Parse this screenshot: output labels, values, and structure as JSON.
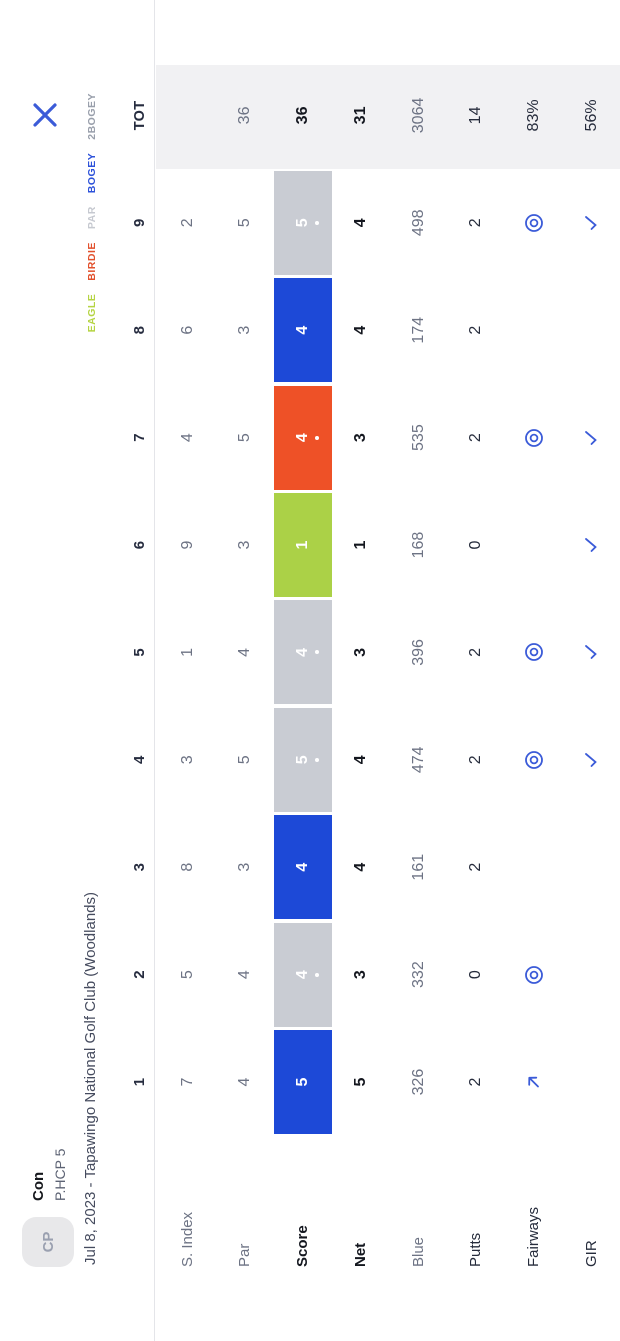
{
  "player": {
    "avatar_initials": "CP",
    "name": "Con",
    "handicap_label": "P.HCP 5"
  },
  "round_info": "Jul 8, 2023 - Tapawingo National Golf Club (Woodlands)",
  "close_label": "close",
  "legend": [
    {
      "label": "EAGLE",
      "color": "#b5d443"
    },
    {
      "label": "BIRDIE",
      "color": "#e2512d"
    },
    {
      "label": "PAR",
      "color": "#c6c9d0"
    },
    {
      "label": "BOGEY",
      "color": "#2d52da"
    },
    {
      "label": "2BOGEY",
      "color": "#999fab"
    }
  ],
  "colors": {
    "eagle": "#abd147",
    "birdie": "#ee5127",
    "par": "#c9ccd3",
    "bogey": "#1d49d7",
    "tot_strip": "#f1f1f3",
    "accent_blue": "#3b5bd8",
    "text_dark": "#262c3c",
    "text_gray": "#6d7384",
    "rule": "#e4e5e9"
  },
  "table": {
    "hole_headers": [
      "1",
      "2",
      "3",
      "4",
      "5",
      "6",
      "7",
      "8",
      "9",
      "TOT"
    ],
    "rows": [
      {
        "label": "S. Index",
        "kind": "text",
        "style": "muted",
        "values": [
          "7",
          "5",
          "8",
          "3",
          "1",
          "9",
          "4",
          "6",
          "2",
          ""
        ]
      },
      {
        "label": "Par",
        "kind": "text",
        "style": "muted",
        "values": [
          "4",
          "4",
          "3",
          "5",
          "4",
          "3",
          "5",
          "3",
          "5",
          "36"
        ]
      },
      {
        "label": "Score",
        "kind": "score",
        "style": "bold",
        "cells": [
          {
            "value": "5",
            "type": "bogey",
            "dot": false
          },
          {
            "value": "4",
            "type": "par",
            "dot": true
          },
          {
            "value": "4",
            "type": "bogey",
            "dot": false
          },
          {
            "value": "5",
            "type": "par",
            "dot": true
          },
          {
            "value": "4",
            "type": "par",
            "dot": true
          },
          {
            "value": "1",
            "type": "eagle",
            "dot": false
          },
          {
            "value": "4",
            "type": "birdie",
            "dot": true
          },
          {
            "value": "4",
            "type": "bogey",
            "dot": false
          },
          {
            "value": "5",
            "type": "par",
            "dot": true
          }
        ],
        "total": "36"
      },
      {
        "label": "Net",
        "kind": "text",
        "style": "bold",
        "values": [
          "5",
          "3",
          "4",
          "4",
          "3",
          "1",
          "3",
          "4",
          "4",
          "31"
        ]
      },
      {
        "label": "Blue",
        "kind": "text",
        "style": "muted",
        "values": [
          "326",
          "332",
          "161",
          "474",
          "396",
          "168",
          "535",
          "174",
          "498",
          "3064"
        ]
      },
      {
        "label": "Putts",
        "kind": "text",
        "style": "plain",
        "values": [
          "2",
          "0",
          "2",
          "2",
          "2",
          "0",
          "2",
          "2",
          "2",
          "14"
        ]
      },
      {
        "label": "Fairways",
        "kind": "icons",
        "style": "plain",
        "icons": [
          "arrow-up-right",
          "target",
          "",
          "target",
          "target",
          "",
          "target",
          "",
          "target"
        ],
        "total": "83%"
      },
      {
        "label": "GIR",
        "kind": "icons",
        "style": "plain",
        "icons": [
          "",
          "",
          "",
          "check",
          "check",
          "check",
          "check",
          "",
          "check"
        ],
        "total": "56%"
      }
    ]
  }
}
